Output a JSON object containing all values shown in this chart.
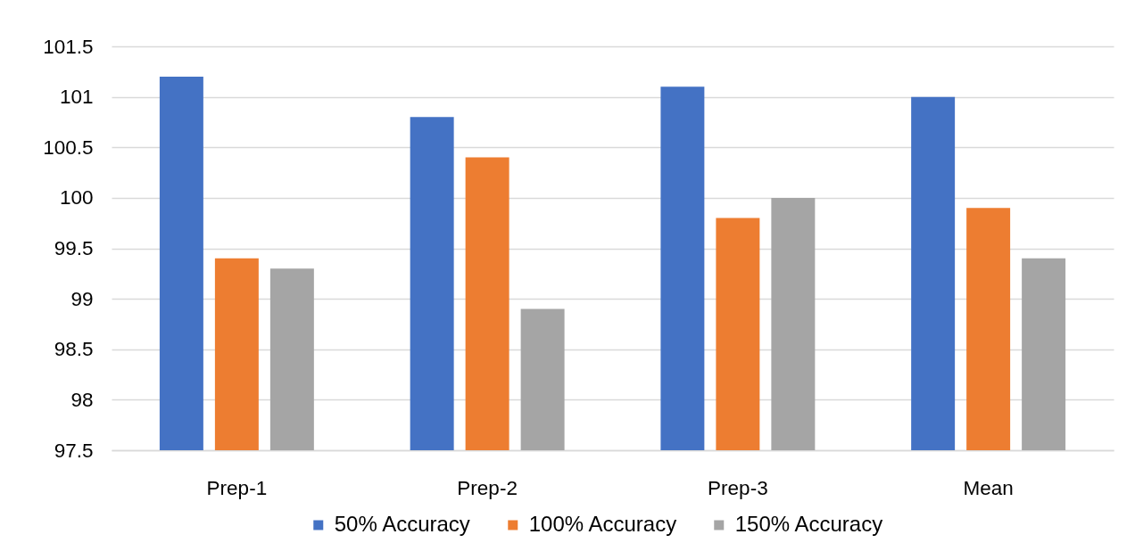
{
  "chart_data": {
    "type": "bar",
    "categories": [
      "Prep-1",
      "Prep-2",
      "Prep-3",
      "Mean"
    ],
    "series": [
      {
        "name": "50% Accuracy",
        "color": "#4472c4",
        "values": [
          101.2,
          100.8,
          101.1,
          101.0
        ]
      },
      {
        "name": "100% Accuracy",
        "color": "#ed7d31",
        "values": [
          99.4,
          100.4,
          99.8,
          99.9
        ]
      },
      {
        "name": "150% Accuracy",
        "color": "#a5a5a5",
        "values": [
          99.3,
          98.9,
          100.0,
          99.4
        ]
      }
    ],
    "ylim": [
      97.5,
      101.5
    ],
    "yticks": [
      97.5,
      98,
      98.5,
      99,
      99.5,
      100,
      100.5,
      101,
      101.5
    ],
    "grid": "y",
    "legend": "bottom"
  }
}
